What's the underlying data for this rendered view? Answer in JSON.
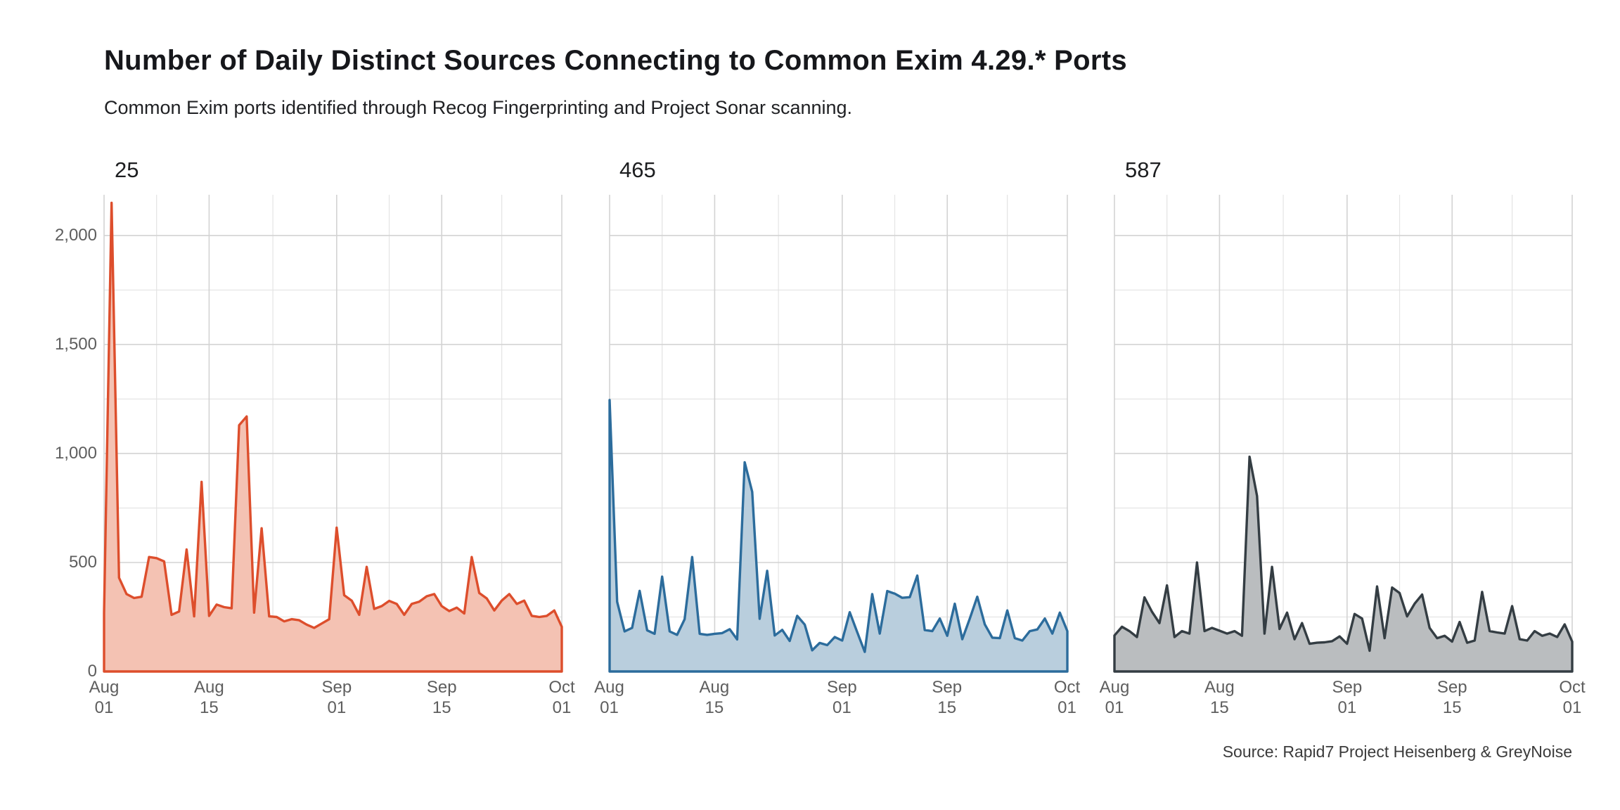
{
  "title": "Number of Daily Distinct Sources Connecting to Common Exim 4.29.* Ports",
  "subtitle": "Common Exim ports identified through Recog Fingerprinting and Project Sonar scanning.",
  "caption": "Source: Rapid7 Project Heisenberg & GreyNoise",
  "chart_data": {
    "type": "area",
    "facet_variable": "port",
    "x_start": "Aug 01",
    "x_end": "Oct 01",
    "x_tick_labels": [
      [
        "Aug",
        "01"
      ],
      [
        "Aug",
        "15"
      ],
      [
        "Sep",
        "01"
      ],
      [
        "Sep",
        "15"
      ],
      [
        "Oct",
        "01"
      ]
    ],
    "x_tick_days": [
      0,
      14,
      31,
      45,
      61
    ],
    "x_minor_days": [
      7,
      22.5,
      38,
      53
    ],
    "y_ticks": [
      "0",
      "500",
      "1,000",
      "1,500",
      "2,000"
    ],
    "y_tick_values": [
      0,
      500,
      1000,
      1500,
      2000
    ],
    "y_minor_values": [
      250,
      750,
      1250,
      1750
    ],
    "ylim": [
      0,
      2187
    ],
    "grid": true,
    "legend": "none",
    "facets": [
      {
        "label": "25",
        "line_color": "#dd4e2c",
        "fill_color": "#f4c2b3",
        "values": [
          270,
          2150,
          430,
          355,
          337,
          343,
          525,
          520,
          505,
          260,
          275,
          560,
          253,
          870,
          255,
          307,
          295,
          290,
          1130,
          1170,
          270,
          657,
          253,
          250,
          230,
          240,
          235,
          215,
          200,
          220,
          240,
          660,
          350,
          325,
          260,
          480,
          287,
          300,
          324,
          310,
          260,
          310,
          320,
          345,
          355,
          300,
          277,
          293,
          266,
          525,
          360,
          335,
          280,
          325,
          355,
          310,
          325,
          255,
          250,
          255,
          280,
          205
        ]
      },
      {
        "label": "465",
        "line_color": "#2c6c9c",
        "fill_color": "#b9cedd",
        "values": [
          1245,
          320,
          184,
          200,
          370,
          189,
          173,
          435,
          184,
          168,
          240,
          525,
          173,
          168,
          173,
          176,
          194,
          147,
          960,
          824,
          242,
          462,
          165,
          191,
          140,
          255,
          215,
          97,
          131,
          121,
          158,
          142,
          272,
          180,
          90,
          355,
          174,
          369,
          357,
          338,
          341,
          440,
          190,
          185,
          243,
          164,
          311,
          148,
          243,
          343,
          216,
          155,
          153,
          280,
          153,
          142,
          185,
          193,
          243,
          174,
          270,
          185
        ]
      },
      {
        "label": "587",
        "line_color": "#343d43",
        "fill_color": "#babdbf",
        "values": [
          165,
          205,
          185,
          158,
          340,
          274,
          222,
          395,
          158,
          185,
          174,
          500,
          185,
          200,
          187,
          174,
          185,
          164,
          985,
          805,
          174,
          480,
          195,
          270,
          148,
          222,
          127,
          132,
          134,
          139,
          161,
          127,
          264,
          243,
          95,
          390,
          153,
          385,
          360,
          253,
          311,
          353,
          200,
          153,
          164,
          137,
          227,
          132,
          142,
          365,
          185,
          179,
          174,
          300,
          148,
          142,
          185,
          164,
          174,
          158,
          216,
          137
        ]
      }
    ]
  }
}
